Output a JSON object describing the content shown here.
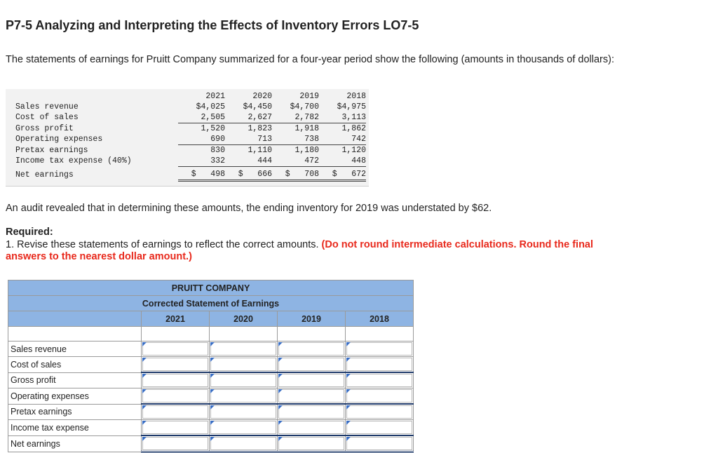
{
  "problem": {
    "title": "P7-5 Analyzing and Interpreting the Effects of Inventory Errors LO7-5",
    "intro": "The statements of earnings for Pruitt Company summarized for a four-year period show the following (amounts in thousands of dollars):",
    "audit": "An audit revealed that in determining these amounts, the ending inventory for 2019 was understated by $62.",
    "required_heading": "Required:",
    "required_text": "1. Revise these statements of earnings to reflect the correct amounts. ",
    "required_instruction": "(Do not round intermediate calculations. Round the final answers to the nearest dollar amount.)"
  },
  "given": {
    "years": [
      "2021",
      "2020",
      "2019",
      "2018"
    ],
    "rows": [
      {
        "label": "Sales revenue",
        "values": [
          "$4,025",
          "$4,450",
          "$4,700",
          "$4,975"
        ]
      },
      {
        "label": "Cost of sales",
        "values": [
          "2,505",
          "2,627",
          "2,782",
          "3,113"
        ]
      },
      {
        "label": "Gross profit",
        "values": [
          "1,520",
          "1,823",
          "1,918",
          "1,862"
        ]
      },
      {
        "label": "Operating expenses",
        "values": [
          "690",
          "713",
          "738",
          "742"
        ]
      },
      {
        "label": "Pretax earnings",
        "values": [
          "830",
          "1,110",
          "1,180",
          "1,120"
        ]
      },
      {
        "label": "Income tax expense (40%)",
        "values": [
          "332",
          "444",
          "472",
          "448"
        ]
      },
      {
        "label": "Net earnings",
        "values": [
          "$   498",
          "$   666",
          "$   708",
          "$   672"
        ]
      }
    ]
  },
  "answer": {
    "company": "PRUITT COMPANY",
    "statement": "Corrected Statement of Earnings",
    "years": [
      "2021",
      "2020",
      "2019",
      "2018"
    ],
    "rows": [
      "Sales revenue",
      "Cost of sales",
      "Gross profit",
      "Operating expenses",
      "Pretax earnings",
      "Income tax expense",
      "Net earnings"
    ]
  }
}
